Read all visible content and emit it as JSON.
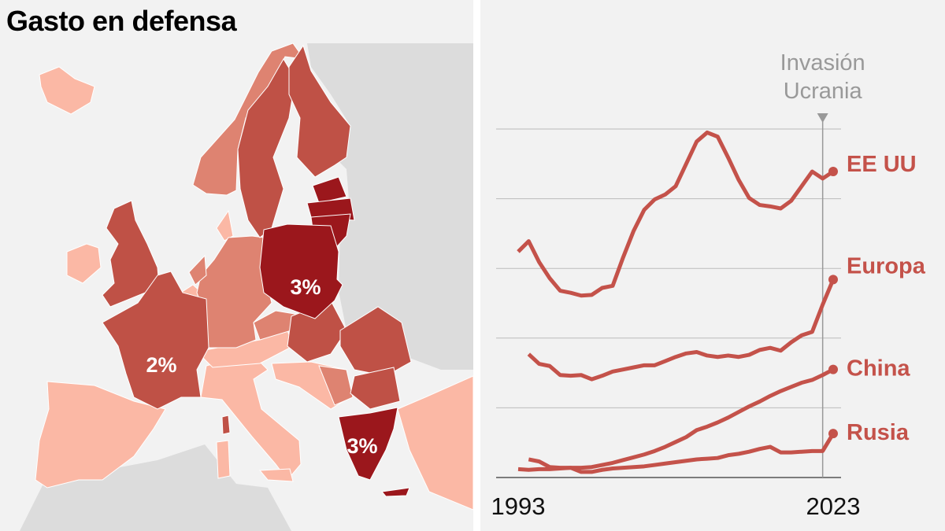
{
  "title": "Gasto en defensa",
  "colors": {
    "background": "#f2f2f2",
    "non_data_land": "#dcdcdc",
    "shade_light": "#fbb8a5",
    "shade_mid": "#de8371",
    "shade_dark": "#bf5146",
    "shade_darkest": "#9b171c",
    "line": "#c4524a",
    "annotation": "#999999"
  },
  "map": {
    "labels": [
      {
        "country": "Polonia",
        "text": "3%"
      },
      {
        "country": "Francia",
        "text": "2%"
      },
      {
        "country": "Grecia",
        "text": "3%"
      }
    ]
  },
  "chart_data": {
    "type": "line",
    "title": "",
    "xlabel": "",
    "ylabel": "",
    "x": [
      1993,
      1994,
      1995,
      1996,
      1997,
      1998,
      1999,
      2000,
      2001,
      2002,
      2003,
      2004,
      2005,
      2006,
      2007,
      2008,
      2009,
      2010,
      2011,
      2012,
      2013,
      2014,
      2015,
      2016,
      2017,
      2018,
      2019,
      2020,
      2021,
      2022,
      2023
    ],
    "x_tick_labels": [
      "1993",
      "2023"
    ],
    "xlim": [
      1993,
      2023
    ],
    "ylim": [
      0,
      5
    ],
    "y_tick_labels": [],
    "grid": true,
    "legend": "direct labels at line ends (right)",
    "annotation": {
      "x": 2022,
      "line1": "Invasión",
      "line2": "Ucrania"
    },
    "series": [
      {
        "name": "EE UU",
        "values": [
          3.24,
          3.39,
          3.09,
          2.86,
          2.68,
          2.65,
          2.61,
          2.62,
          2.72,
          2.75,
          3.16,
          3.54,
          3.84,
          3.99,
          4.06,
          4.18,
          4.5,
          4.82,
          4.95,
          4.89,
          4.59,
          4.27,
          4.01,
          3.91,
          3.89,
          3.86,
          3.97,
          4.18,
          4.39,
          4.29,
          4.39
        ]
      },
      {
        "name": "Europa",
        "values": [
          null,
          1.77,
          1.63,
          1.6,
          1.47,
          1.46,
          1.47,
          1.41,
          1.46,
          1.52,
          1.55,
          1.58,
          1.61,
          1.61,
          1.67,
          1.73,
          1.78,
          1.8,
          1.75,
          1.73,
          1.75,
          1.73,
          1.76,
          1.83,
          1.86,
          1.82,
          1.94,
          2.04,
          2.09,
          2.48,
          2.84
        ]
      },
      {
        "name": "China",
        "values": [
          0.12,
          0.11,
          0.12,
          0.12,
          0.13,
          0.14,
          0.14,
          0.15,
          0.18,
          0.21,
          0.25,
          0.29,
          0.33,
          0.38,
          0.44,
          0.51,
          0.58,
          0.68,
          0.73,
          0.79,
          0.86,
          0.94,
          1.02,
          1.09,
          1.17,
          1.24,
          1.3,
          1.36,
          1.4,
          1.47,
          1.55
        ]
      },
      {
        "name": "Rusia",
        "values": [
          null,
          0.26,
          0.23,
          0.15,
          0.14,
          0.14,
          0.08,
          0.08,
          0.11,
          0.13,
          0.14,
          0.15,
          0.16,
          0.18,
          0.2,
          0.22,
          0.24,
          0.26,
          0.27,
          0.28,
          0.32,
          0.34,
          0.37,
          0.41,
          0.44,
          0.36,
          0.36,
          0.37,
          0.38,
          0.38,
          0.63
        ]
      }
    ]
  }
}
